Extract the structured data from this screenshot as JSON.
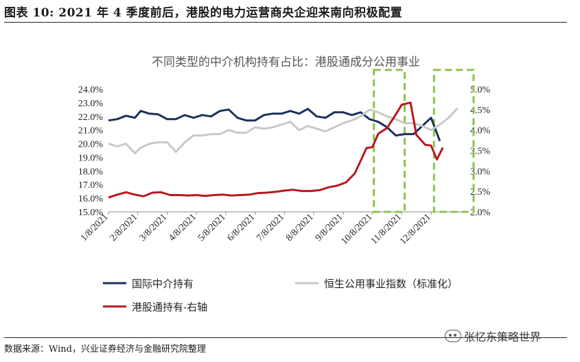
{
  "figure_title": "图表 10:   2021 年 4 季度前后，港股的电力运营商央企迎来南向积极配置",
  "source_note": "数据来源：Wind，兴业证券经济与金融研究院整理",
  "watermark": "张忆东策略世界",
  "chart_data": {
    "type": "line",
    "title": "不同类型的中介机构持有占比：港股通成分公用事业",
    "x_ticks": [
      "1/8/2021",
      "2/8/2021",
      "3/8/2021",
      "4/8/2021",
      "5/8/2021",
      "6/8/2021",
      "7/8/2021",
      "8/8/2021",
      "9/8/2021",
      "10/8/2021",
      "11/8/2021",
      "12/8/2021"
    ],
    "y_left": {
      "range": [
        15.0,
        24.0
      ],
      "step": 1.0,
      "tick_format": "%.1f%%"
    },
    "y_right": {
      "range": [
        2.0,
        5.0
      ],
      "step": 0.5,
      "tick_format": "%.1f%%"
    },
    "series": [
      {
        "name": "国际中介持有",
        "axis": "left",
        "color": "#1c2f5e",
        "x": [
          0,
          0.3,
          0.6,
          0.9,
          1.1,
          1.4,
          1.7,
          2.0,
          2.3,
          2.6,
          2.9,
          3.2,
          3.5,
          3.8,
          4.1,
          4.4,
          4.7,
          5.0,
          5.3,
          5.6,
          5.9,
          6.2,
          6.5,
          6.8,
          7.1,
          7.4,
          7.7,
          8.0,
          8.3,
          8.6,
          8.9,
          9.2,
          9.5,
          9.8,
          10.1,
          10.4,
          10.7,
          11.0,
          11.3
        ],
        "y": [
          21.7,
          21.8,
          22.05,
          21.9,
          22.4,
          22.2,
          22.15,
          21.8,
          21.8,
          22.1,
          21.9,
          22.1,
          22.0,
          22.4,
          22.5,
          21.9,
          21.7,
          21.7,
          22.1,
          22.2,
          22.2,
          22.4,
          22.2,
          22.55,
          22.0,
          21.9,
          22.3,
          22.3,
          22.1,
          22.3,
          21.8,
          21.6,
          21.2,
          20.6,
          20.7,
          20.7,
          21.3,
          21.9,
          20.2
        ]
      },
      {
        "name": "恒生公用事业指数（标准化）",
        "axis": "left",
        "color": "#c8c8c8",
        "x": [
          0,
          0.3,
          0.6,
          0.9,
          1.1,
          1.4,
          1.7,
          2.0,
          2.3,
          2.6,
          2.9,
          3.2,
          3.5,
          3.8,
          4.1,
          4.4,
          4.7,
          5.0,
          5.3,
          5.6,
          5.9,
          6.2,
          6.5,
          6.8,
          7.1,
          7.4,
          7.7,
          8.0,
          8.3,
          8.6,
          8.9,
          9.2,
          9.5,
          9.8,
          10.1,
          10.4,
          10.7,
          11.0,
          11.3,
          11.6,
          11.9
        ],
        "y": [
          20.0,
          19.8,
          20.0,
          19.3,
          19.7,
          20.0,
          20.1,
          20.1,
          19.4,
          20.1,
          20.6,
          20.6,
          20.7,
          20.7,
          21.0,
          20.8,
          20.8,
          21.2,
          21.1,
          21.2,
          21.4,
          21.6,
          21.0,
          21.3,
          21.1,
          20.9,
          21.2,
          21.5,
          21.7,
          22.0,
          22.5,
          22.3,
          22.0,
          21.8,
          21.5,
          21.5,
          21.3,
          21.0,
          21.4,
          21.9,
          22.6
        ]
      },
      {
        "name": "港股通持有-右轴",
        "axis": "right",
        "color": "#b8171f",
        "x": [
          0,
          0.3,
          0.6,
          0.9,
          1.2,
          1.5,
          1.8,
          2.1,
          2.4,
          2.7,
          3.0,
          3.3,
          3.6,
          3.9,
          4.2,
          4.5,
          4.8,
          5.1,
          5.4,
          5.7,
          6.0,
          6.3,
          6.6,
          6.9,
          7.2,
          7.5,
          7.8,
          8.1,
          8.4,
          8.6,
          8.8,
          9.0,
          9.2,
          9.5,
          9.8,
          10.0,
          10.3,
          10.5,
          10.8,
          11.0,
          11.2,
          11.4
        ],
        "y": [
          2.35,
          2.42,
          2.48,
          2.42,
          2.38,
          2.47,
          2.48,
          2.41,
          2.41,
          2.4,
          2.41,
          2.39,
          2.41,
          2.42,
          2.4,
          2.41,
          2.42,
          2.46,
          2.47,
          2.49,
          2.52,
          2.54,
          2.51,
          2.51,
          2.53,
          2.6,
          2.64,
          2.72,
          2.94,
          3.25,
          3.56,
          3.58,
          3.91,
          4.05,
          4.38,
          4.62,
          4.67,
          3.88,
          3.64,
          3.62,
          3.28,
          3.57
        ]
      }
    ],
    "highlight_ranges": [
      [
        9.05,
        10.1
      ],
      [
        11.1,
        12.45
      ]
    ]
  }
}
